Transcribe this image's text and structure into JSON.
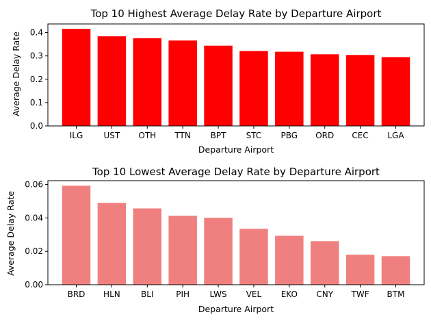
{
  "chart_data": [
    {
      "type": "bar",
      "title": "Top 10 Highest Average Delay Rate by Departure Airport",
      "xlabel": "Departure Airport",
      "ylabel": "Average Delay Rate",
      "categories": [
        "ILG",
        "UST",
        "OTH",
        "TTN",
        "BPT",
        "STC",
        "PBG",
        "ORD",
        "CEC",
        "LGA"
      ],
      "values": [
        0.416,
        0.384,
        0.376,
        0.366,
        0.344,
        0.321,
        0.318,
        0.307,
        0.304,
        0.295
      ],
      "ylim": [
        0,
        0.437
      ],
      "yticks": [
        0.0,
        0.1,
        0.2,
        0.3,
        0.4
      ],
      "ytick_labels": [
        "0.0",
        "0.1",
        "0.2",
        "0.3",
        "0.4"
      ],
      "color": "#ff0000",
      "grid": false
    },
    {
      "type": "bar",
      "title": "Top 10 Lowest Average Delay Rate by Departure Airport",
      "xlabel": "Departure Airport",
      "ylabel": "Average Delay Rate",
      "categories": [
        "BRD",
        "HLN",
        "BLI",
        "PIH",
        "LWS",
        "VEL",
        "EKO",
        "CNY",
        "TWF",
        "BTM"
      ],
      "values": [
        0.0593,
        0.049,
        0.0457,
        0.0413,
        0.0401,
        0.0335,
        0.0293,
        0.0261,
        0.018,
        0.0171
      ],
      "ylim": [
        0,
        0.0623
      ],
      "yticks": [
        0.0,
        0.02,
        0.04,
        0.06
      ],
      "ytick_labels": [
        "0.00",
        "0.02",
        "0.04",
        "0.06"
      ],
      "color": "#f08080",
      "grid": false
    }
  ]
}
